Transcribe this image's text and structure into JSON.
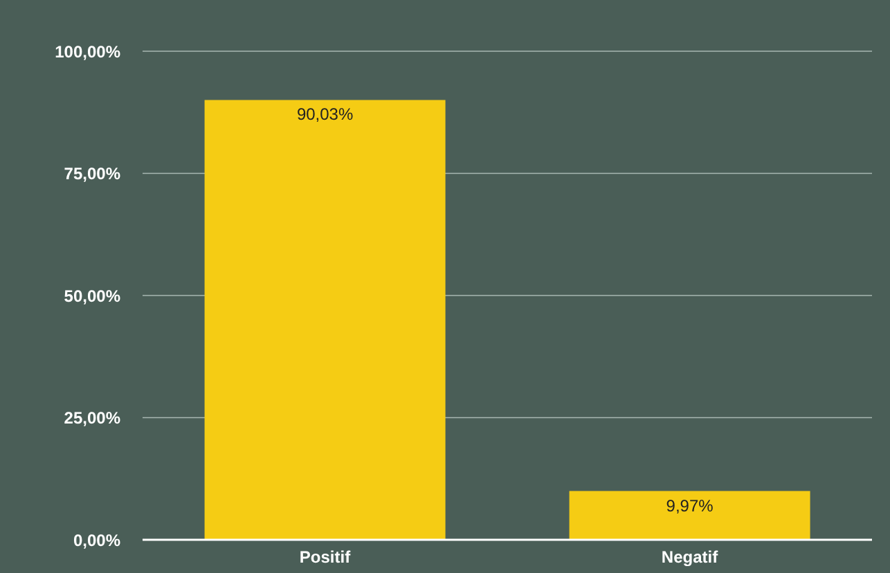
{
  "chart_data": {
    "type": "bar",
    "categories": [
      "Positif",
      "Negatif"
    ],
    "values": [
      90.03,
      9.97
    ],
    "color": "#f5cc14",
    "value_labels": [
      "90,03%",
      "9,97%"
    ],
    "ylim": [
      0,
      100
    ],
    "yticks": [
      {
        "value": 0,
        "label": "0,00%"
      },
      {
        "value": 25,
        "label": "25,00%"
      },
      {
        "value": 50,
        "label": "50,00%"
      },
      {
        "value": 75,
        "label": "75,00%"
      },
      {
        "value": 100,
        "label": "100,00%"
      }
    ],
    "grid": "y",
    "legend": false
  }
}
